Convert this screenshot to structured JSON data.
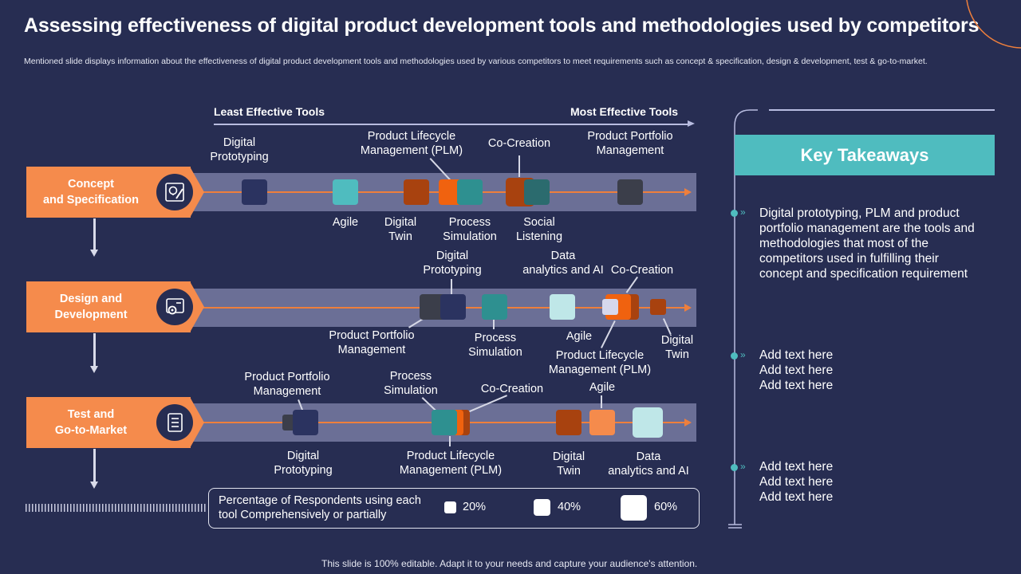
{
  "header": {
    "title": "Assessing effectiveness of digital product development tools and methodologies used by competitors",
    "subtitle": "Mentioned slide displays information about the effectiveness of digital product  development tools and methodologies used by various competitors to meet requirements such as concept & specification, design & development, test & go-to-market."
  },
  "axis": {
    "least_label": "Least Effective Tools",
    "most_label": "Most Effective Tools"
  },
  "stages": [
    {
      "name_line1": "Concept",
      "name_line2": "and Specification",
      "icon": "lightbulb-pencil-icon"
    },
    {
      "name_line1": "Design and",
      "name_line2": "Development",
      "icon": "gear-screen-icon"
    },
    {
      "name_line1": "Test and",
      "name_line2": "Go-to-Market",
      "icon": "checklist-icon"
    }
  ],
  "rows": [
    {
      "tools": [
        {
          "label1": "Digital",
          "label2": "Prototyping",
          "size": "40%",
          "color": "#2b3360"
        },
        {
          "label1": "Agile",
          "label2": "",
          "size": "40%",
          "color": "#4fbcbf"
        },
        {
          "label1": "Digital",
          "label2": "Twin",
          "size": "40%",
          "color": "#a8420f"
        },
        {
          "label1": "Product Lifecycle",
          "label2": "Management (PLM)",
          "size": "40%",
          "color": "#f0620f"
        },
        {
          "label1": "Process",
          "label2": "Simulation",
          "size": "40%",
          "color": "#2e9090"
        },
        {
          "label1": "Co-Creation",
          "label2": "",
          "size": "60%",
          "color": "#a8420f"
        },
        {
          "label1": "Social",
          "label2": "Listening",
          "size": "40%",
          "color": "#2b6b6e"
        },
        {
          "label1": "Product Portfolio",
          "label2": "Management",
          "size": "40%",
          "color": "#3b3e4a"
        }
      ]
    },
    {
      "tools": [
        {
          "label1": "Product Portfolio",
          "label2": "Management",
          "size": "40%",
          "color": "#3b3e4a"
        },
        {
          "label1": "Digital",
          "label2": "Prototyping",
          "size": "40%",
          "color": "#2b3360"
        },
        {
          "label1": "Process",
          "label2": "Simulation",
          "size": "40%",
          "color": "#2e9090"
        },
        {
          "label1": "Data",
          "label2": "analytics and AI",
          "size": "40%",
          "color": "#bfe7e8"
        },
        {
          "label1": "Co-Creation",
          "label2": "",
          "size": "40%",
          "color": "#a8420f"
        },
        {
          "label1": "Product Lifecycle",
          "label2": "Management (PLM)",
          "size": "40%",
          "color": "#f0620f"
        },
        {
          "label1": "Agile",
          "label2": "",
          "size": "20%",
          "color": "#d6d8ec"
        },
        {
          "label1": "Digital",
          "label2": "Twin",
          "size": "20%",
          "color": "#a8420f"
        }
      ]
    },
    {
      "tools": [
        {
          "label1": "Digital",
          "label2": "Prototyping",
          "size": "20%",
          "color": "#3b3e4a"
        },
        {
          "label1": "Product Portfolio",
          "label2": "Management",
          "size": "40%",
          "color": "#2b3360"
        },
        {
          "label1": "Co-Creation",
          "label2": "",
          "size": "40%",
          "color": "#a8420f"
        },
        {
          "label1": "Product Lifecycle",
          "label2": "Management (PLM)",
          "size": "40%",
          "color": "#f0620f"
        },
        {
          "label1": "Process",
          "label2": "Simulation",
          "size": "40%",
          "color": "#2e9090"
        },
        {
          "label1": "Digital",
          "label2": "Twin",
          "size": "40%",
          "color": "#a8420f"
        },
        {
          "label1": "Agile",
          "label2": "",
          "size": "40%",
          "color": "#f58b4c"
        },
        {
          "label1": "Data",
          "label2": "analytics and AI",
          "size": "60%",
          "color": "#bfe7e8"
        }
      ]
    }
  ],
  "legend": {
    "caption_line1": "Percentage of Respondents using each",
    "caption_line2": "tool Comprehensively or partially",
    "items": [
      "20%",
      "40%",
      "60%"
    ]
  },
  "key_takeaways": {
    "heading": "Key Takeaways",
    "points": [
      [
        "Digital prototyping, PLM and product",
        "portfolio management  are the tools and",
        "methodologies that  most of the",
        "competitors used in fulfilling their",
        "concept and specification requirement"
      ],
      [
        "Add text here",
        "Add text here",
        "Add text here"
      ],
      [
        "Add text here",
        "Add text here",
        "Add text here"
      ]
    ]
  },
  "footer": "This slide is 100% editable. Adapt it to your needs and capture your audience's attention.",
  "colors": {
    "background": "#272d52",
    "accent_orange": "#f58b4c",
    "accent_teal": "#4fbcbf",
    "band": "#6b6f96"
  }
}
